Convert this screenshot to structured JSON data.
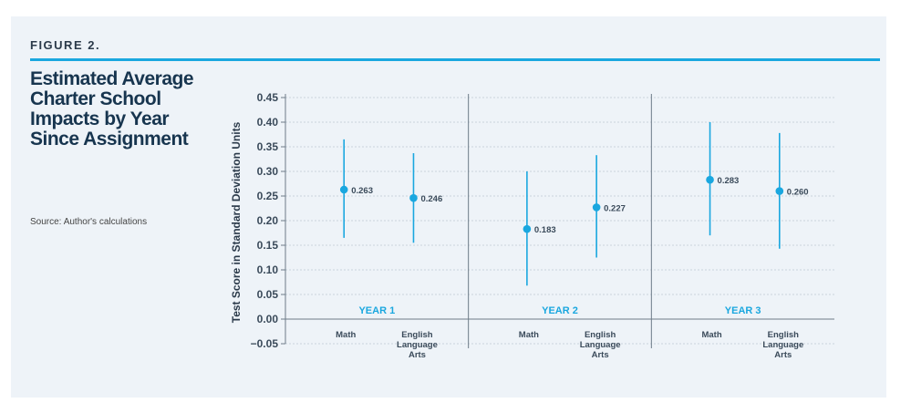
{
  "figure_label": "FIGURE 2.",
  "title": "Estimated Average Charter School Impacts by Year Since Assignment",
  "source": "Source: Author's calculations",
  "colors": {
    "accent": "#1aa7df",
    "title": "#17354f",
    "background": "#eef3f8"
  },
  "chart_data": {
    "type": "scatter",
    "ylabel": "Test Score in Standard Deviation Units",
    "ylim": [
      -0.05,
      0.45
    ],
    "yticks": [
      "0.45",
      "0.40",
      "0.35",
      "0.30",
      "0.25",
      "0.20",
      "0.15",
      "0.10",
      "0.05",
      "0.00",
      "−0.05"
    ],
    "ytick_values": [
      0.45,
      0.4,
      0.35,
      0.3,
      0.25,
      0.2,
      0.15,
      0.1,
      0.05,
      0.0,
      -0.05
    ],
    "grid": true,
    "groups": [
      {
        "label": "YEAR 1",
        "points": [
          {
            "category": "Math",
            "value": 0.263,
            "label": "0.263",
            "ci": [
              0.165,
              0.365
            ]
          },
          {
            "category": "English Language Arts",
            "value": 0.246,
            "label": "0.246",
            "ci": [
              0.155,
              0.337
            ]
          }
        ]
      },
      {
        "label": "YEAR 2",
        "points": [
          {
            "category": "Math",
            "value": 0.183,
            "label": "0.183",
            "ci": [
              0.068,
              0.3
            ]
          },
          {
            "category": "English Language Arts",
            "value": 0.227,
            "label": "0.227",
            "ci": [
              0.125,
              0.333
            ]
          }
        ]
      },
      {
        "label": "YEAR 3",
        "points": [
          {
            "category": "Math",
            "value": 0.283,
            "label": "0.283",
            "ci": [
              0.17,
              0.4
            ]
          },
          {
            "category": "English Language Arts",
            "value": 0.26,
            "label": "0.260",
            "ci": [
              0.143,
              0.378
            ]
          }
        ]
      }
    ]
  }
}
